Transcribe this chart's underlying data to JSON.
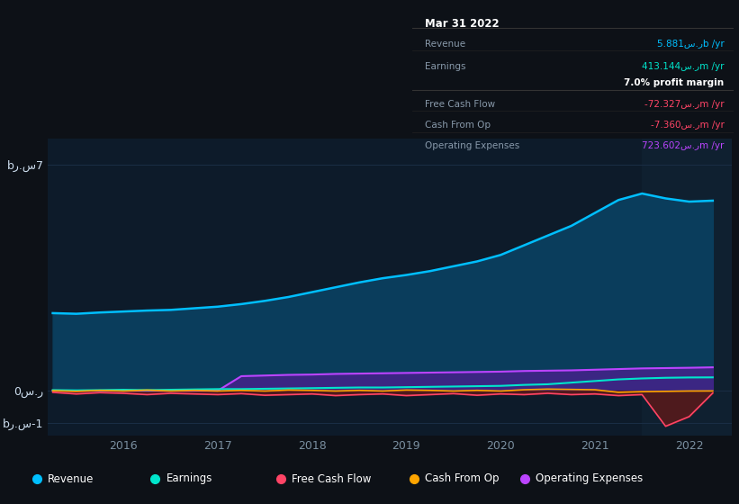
{
  "bg_color": "#0d1117",
  "plot_bg_color": "#0d1b2a",
  "plot_bg_color_right": "#0f2030",
  "grid_color": "#1a2e45",
  "revenue_color": "#00bfff",
  "earnings_color": "#00e5cc",
  "fcf_color": "#ff4466",
  "cashfromop_color": "#ffa500",
  "opex_color": "#bb44ff",
  "revenue_fill_color": "#0a3d5c",
  "opex_fill_color": "#44228a",
  "tooltip_bg": "#000000",
  "tooltip_border": "#333333",
  "tooltip_title": "Mar 31 2022",
  "tooltip_revenue_label": "Revenue",
  "tooltip_revenue_value": "5.881س.رb /yr",
  "tooltip_earnings_label": "Earnings",
  "tooltip_earnings_value": "413.144س.رm /yr",
  "tooltip_margin": "7.0% profit margin",
  "tooltip_fcf_label": "Free Cash Flow",
  "tooltip_fcf_value": "-72.327س.رm /yr",
  "tooltip_cashop_label": "Cash From Op",
  "tooltip_cashop_value": "-7.360س.رm /yr",
  "tooltip_opex_label": "Operating Expenses",
  "tooltip_opex_value": "723.602س.رm /yr",
  "legend_labels": [
    "Revenue",
    "Earnings",
    "Free Cash Flow",
    "Cash From Op",
    "Operating Expenses"
  ],
  "legend_colors": [
    "#00bfff",
    "#00e5cc",
    "#ff4466",
    "#ffa500",
    "#bb44ff"
  ],
  "ytick_values": [
    -1000000000,
    0,
    7000000000
  ],
  "ytick_labels": [
    "bر.س-1",
    "0س.ر",
    "bر.س7"
  ],
  "xtick_values": [
    2016,
    2017,
    2018,
    2019,
    2020,
    2021,
    2022
  ],
  "xmin": 2015.2,
  "xmax": 2022.45,
  "ymin": -1400000000,
  "ymax": 7800000000,
  "split_x": 2021.5
}
